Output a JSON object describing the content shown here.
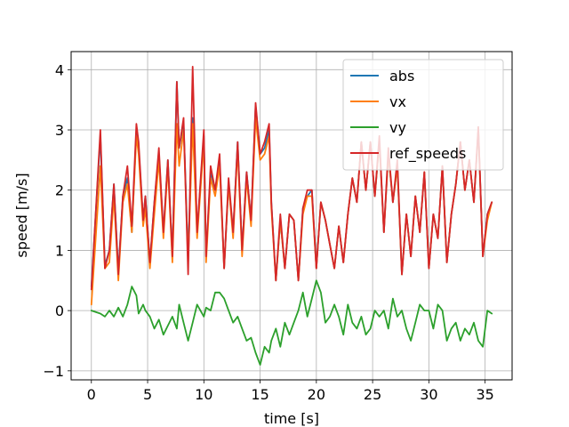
{
  "chart_data": {
    "type": "line",
    "xlabel": "time [s]",
    "ylabel": "speed [m/s]",
    "xlim": [
      -1.8,
      37.4
    ],
    "ylim": [
      -1.15,
      4.3
    ],
    "xticks": [
      0,
      5,
      10,
      15,
      20,
      25,
      30,
      35
    ],
    "yticks": [
      -1,
      0,
      1,
      2,
      3,
      4
    ],
    "grid": true,
    "legend_position": "top-right",
    "x": [
      0,
      0.8,
      1.2,
      1.6,
      2.0,
      2.4,
      2.8,
      3.2,
      3.6,
      4.0,
      4.2,
      4.6,
      4.8,
      5.2,
      5.6,
      6.0,
      6.4,
      6.8,
      7.2,
      7.6,
      7.8,
      8.2,
      8.6,
      9.0,
      9.4,
      10.0,
      10.2,
      10.6,
      11.0,
      11.4,
      11.8,
      12.2,
      12.6,
      13.0,
      13.4,
      13.8,
      14.2,
      14.6,
      15.0,
      15.4,
      15.8,
      16.0,
      16.4,
      16.8,
      17.2,
      17.6,
      18.0,
      18.4,
      18.8,
      19.2,
      19.6,
      20.0,
      20.4,
      20.8,
      21.2,
      21.6,
      22.0,
      22.4,
      22.8,
      23.2,
      23.6,
      24.0,
      24.4,
      24.8,
      25.2,
      25.6,
      26.0,
      26.4,
      26.8,
      27.2,
      27.6,
      28.0,
      28.4,
      28.8,
      29.2,
      29.6,
      30.0,
      30.4,
      30.8,
      31.2,
      31.6,
      32.0,
      32.4,
      32.8,
      33.2,
      33.6,
      34.0,
      34.4,
      34.8,
      35.2,
      35.6
    ],
    "series": [
      {
        "name": "abs",
        "color": "#1f77b4",
        "values": [
          0.4,
          2.9,
          0.75,
          1.0,
          2.1,
          0.65,
          1.9,
          2.2,
          1.3,
          3.0,
          2.7,
          1.5,
          1.9,
          0.8,
          1.8,
          2.6,
          1.3,
          2.5,
          0.9,
          3.8,
          2.7,
          3.1,
          0.9,
          3.2,
          1.3,
          2.9,
          0.9,
          2.3,
          2.0,
          2.5,
          0.7,
          2.1,
          1.3,
          2.8,
          1.0,
          2.3,
          1.5,
          3.4,
          2.6,
          2.7,
          3.0,
          1.8,
          0.5,
          1.5,
          0.7,
          1.6,
          1.5,
          0.5,
          1.7,
          1.9,
          2.0,
          0.7,
          1.8,
          1.5,
          1.1,
          0.7,
          1.4,
          0.8,
          1.6,
          2.2,
          1.8,
          2.8,
          2.0,
          2.8,
          1.9,
          2.8,
          1.3,
          2.6,
          1.8,
          2.4,
          0.6,
          1.6,
          0.9,
          1.9,
          1.3,
          2.3,
          0.7,
          1.6,
          1.2,
          2.4,
          0.8,
          1.6,
          2.1,
          2.8,
          2.0,
          2.5,
          1.8,
          3.0,
          0.9,
          1.6,
          1.8
        ]
      },
      {
        "name": "vx",
        "color": "#ff7f0e",
        "values": [
          0.1,
          2.4,
          0.7,
          0.8,
          1.9,
          0.5,
          1.8,
          2.1,
          1.3,
          2.9,
          2.6,
          1.4,
          1.7,
          0.7,
          1.6,
          2.5,
          1.2,
          2.4,
          0.8,
          3.1,
          2.4,
          3.0,
          0.8,
          3.1,
          1.2,
          2.8,
          0.8,
          2.2,
          1.9,
          2.4,
          0.7,
          2.1,
          1.2,
          2.7,
          0.9,
          2.2,
          1.4,
          3.2,
          2.5,
          2.6,
          2.9,
          1.7,
          0.5,
          1.5,
          0.7,
          1.6,
          1.5,
          0.5,
          1.6,
          1.9,
          1.9,
          0.7,
          1.8,
          1.5,
          1.1,
          0.7,
          1.4,
          0.8,
          1.6,
          2.2,
          1.8,
          2.8,
          2.0,
          2.8,
          1.9,
          2.8,
          1.3,
          2.6,
          1.8,
          2.4,
          0.6,
          1.6,
          0.9,
          1.9,
          1.3,
          2.3,
          0.7,
          1.6,
          1.2,
          2.4,
          0.8,
          1.6,
          2.1,
          2.8,
          2.0,
          2.5,
          1.8,
          3.0,
          0.9,
          1.5,
          1.8
        ]
      },
      {
        "name": "vy",
        "color": "#2ca02c",
        "values": [
          0.0,
          -0.05,
          -0.1,
          0.0,
          -0.1,
          0.05,
          -0.1,
          0.1,
          0.4,
          0.25,
          -0.05,
          0.1,
          0.0,
          -0.1,
          -0.3,
          -0.15,
          -0.4,
          -0.25,
          -0.1,
          -0.3,
          0.1,
          -0.2,
          -0.5,
          -0.2,
          0.1,
          -0.1,
          0.05,
          0.0,
          0.3,
          0.3,
          0.2,
          0.0,
          -0.2,
          -0.1,
          -0.3,
          -0.5,
          -0.45,
          -0.7,
          -0.9,
          -0.6,
          -0.7,
          -0.5,
          -0.3,
          -0.6,
          -0.2,
          -0.4,
          -0.2,
          0.0,
          0.3,
          -0.1,
          0.2,
          0.5,
          0.3,
          -0.2,
          -0.1,
          0.1,
          -0.1,
          -0.4,
          0.1,
          -0.2,
          -0.3,
          -0.1,
          -0.4,
          -0.3,
          0.0,
          -0.1,
          0.0,
          -0.3,
          0.2,
          -0.1,
          0.0,
          -0.3,
          -0.5,
          -0.2,
          0.1,
          0.0,
          0.0,
          -0.3,
          0.1,
          0.0,
          -0.5,
          -0.3,
          -0.2,
          -0.5,
          -0.3,
          -0.4,
          -0.2,
          -0.5,
          -0.6,
          0.0,
          -0.05
        ]
      },
      {
        "name": "ref_speeds",
        "color": "#d62728",
        "values": [
          0.35,
          3.0,
          0.7,
          1.0,
          2.1,
          0.6,
          1.9,
          2.4,
          1.4,
          3.1,
          2.8,
          1.5,
          1.9,
          0.8,
          1.8,
          2.7,
          1.3,
          2.5,
          0.9,
          3.8,
          2.7,
          3.2,
          0.6,
          4.05,
          1.3,
          3.0,
          0.9,
          2.4,
          2.0,
          2.6,
          0.7,
          2.2,
          1.3,
          2.8,
          1.0,
          2.3,
          1.5,
          3.45,
          2.6,
          2.8,
          3.1,
          1.8,
          0.5,
          1.6,
          0.7,
          1.6,
          1.5,
          0.5,
          1.7,
          2.0,
          2.0,
          0.7,
          1.8,
          1.5,
          1.1,
          0.7,
          1.4,
          0.8,
          1.6,
          2.2,
          1.8,
          2.8,
          2.0,
          2.8,
          1.9,
          2.9,
          1.3,
          2.7,
          1.8,
          2.5,
          0.6,
          1.6,
          0.9,
          1.9,
          1.3,
          2.3,
          0.7,
          1.6,
          1.2,
          2.4,
          0.8,
          1.6,
          2.1,
          2.8,
          2.0,
          2.5,
          1.8,
          3.05,
          0.9,
          1.6,
          1.8
        ]
      }
    ]
  }
}
